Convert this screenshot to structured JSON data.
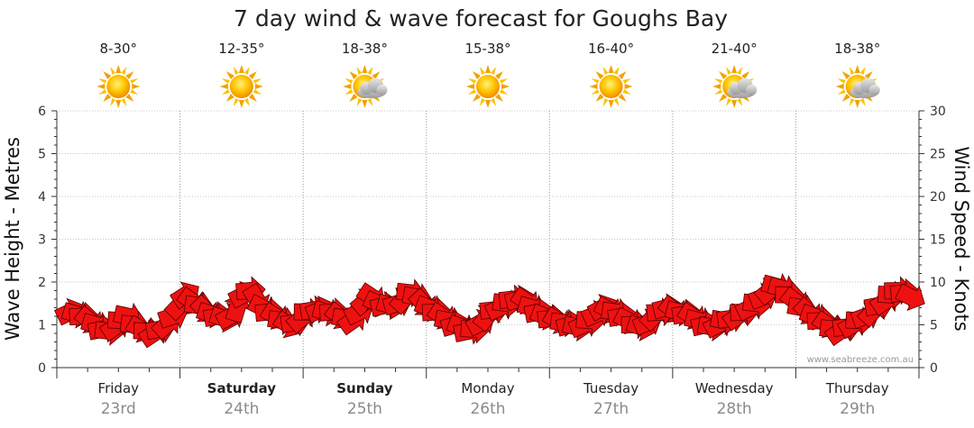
{
  "chart_data": {
    "type": "line",
    "title": "7 day wind & wave forecast for Goughs Bay",
    "ylabel_left": "Wave Height - Metres",
    "ylabel_right": "Wind Speed - Knots",
    "yticks_left": [
      "0",
      "1",
      "2",
      "3",
      "4",
      "5",
      "6"
    ],
    "yticks_right": [
      "0",
      "5",
      "10",
      "15",
      "20",
      "25",
      "30"
    ],
    "ylim_left": [
      0,
      6
    ],
    "ylim_right": [
      0,
      30
    ],
    "grid": true,
    "watermark": "www.seabreeze.com.au",
    "days": [
      {
        "name": "Friday",
        "date": "23rd",
        "temp": "8-30°",
        "icon": "sun-icon",
        "bold": false
      },
      {
        "name": "Saturday",
        "date": "24th",
        "temp": "12-35°",
        "icon": "sun-icon",
        "bold": true
      },
      {
        "name": "Sunday",
        "date": "25th",
        "temp": "18-38°",
        "icon": "sun-cloud-icon",
        "bold": true
      },
      {
        "name": "Monday",
        "date": "26th",
        "temp": "15-38°",
        "icon": "sun-icon",
        "bold": false
      },
      {
        "name": "Tuesday",
        "date": "27th",
        "temp": "16-40°",
        "icon": "sun-icon",
        "bold": false
      },
      {
        "name": "Wednesday",
        "date": "28th",
        "temp": "21-40°",
        "icon": "sun-cloud-icon",
        "bold": false
      },
      {
        "name": "Thursday",
        "date": "29th",
        "temp": "18-38°",
        "icon": "sun-cloud-icon",
        "bold": false
      }
    ],
    "series": [
      {
        "values": [
          1.3,
          1.25,
          1.2,
          1.1,
          1.0,
          0.9,
          0.85,
          0.95,
          1.1,
          1.2,
          1.0,
          0.9,
          0.85,
          0.8,
          0.9,
          1.0,
          1.2,
          1.45,
          1.7,
          1.55,
          1.45,
          1.35,
          1.25,
          1.2,
          1.15,
          1.2,
          1.4,
          1.7,
          1.8,
          1.6,
          1.4,
          1.3,
          1.2,
          1.1,
          1.0,
          1.05,
          1.15,
          1.3,
          1.35,
          1.35,
          1.3,
          1.3,
          1.2,
          1.15,
          1.1,
          1.3,
          1.55,
          1.65,
          1.5,
          1.45,
          1.45,
          1.5,
          1.6,
          1.75,
          1.65,
          1.5,
          1.4,
          1.3,
          1.2,
          1.1,
          1.0,
          0.95,
          0.85,
          0.9,
          1.05,
          1.2,
          1.35,
          1.4,
          1.5,
          1.6,
          1.6,
          1.55,
          1.4,
          1.3,
          1.2,
          1.15,
          1.1,
          1.05,
          1.0,
          0.95,
          1.0,
          1.1,
          1.25,
          1.4,
          1.35,
          1.3,
          1.2,
          1.1,
          1.0,
          0.95,
          1.05,
          1.2,
          1.3,
          1.4,
          1.35,
          1.3,
          1.25,
          1.2,
          1.1,
          1.0,
          0.95,
          1.0,
          1.1,
          1.15,
          1.2,
          1.3,
          1.4,
          1.5,
          1.65,
          1.8,
          1.9,
          1.85,
          1.7,
          1.55,
          1.4,
          1.3,
          1.2,
          1.1,
          1.0,
          0.9,
          0.85,
          0.95,
          1.0,
          1.1,
          1.2,
          1.3,
          1.45,
          1.55,
          1.7,
          1.8,
          1.75,
          1.65
        ]
      }
    ]
  }
}
